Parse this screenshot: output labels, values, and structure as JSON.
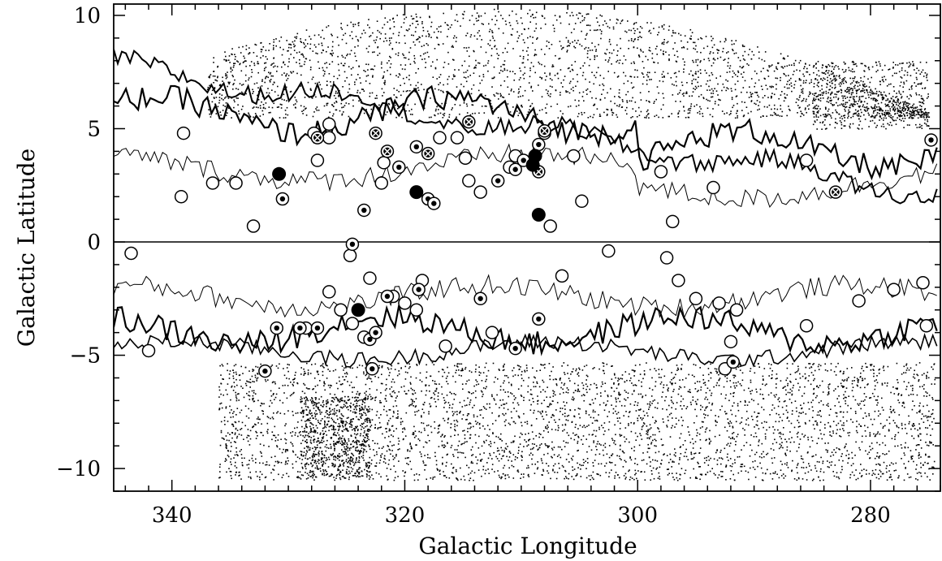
{
  "chart_data": {
    "type": "scatter",
    "title": "",
    "xlabel": "Galactic Longitude",
    "ylabel": "Galactic Latitude",
    "xlim": [
      345,
      274
    ],
    "ylim": [
      -11,
      10.5
    ],
    "x_reversed": true,
    "x_ticks": [
      340,
      320,
      300,
      280
    ],
    "x_tick_labels": [
      "340",
      "320",
      "300",
      "280"
    ],
    "y_ticks": [
      10,
      5,
      0,
      -5,
      -10
    ],
    "y_tick_labels": [
      "10",
      "5",
      "0",
      "−10"
    ],
    "y_tick_labels_full": [
      "10",
      "5",
      "0",
      "−5",
      "−10"
    ],
    "reference_line_y": 0,
    "grid": false,
    "legend": "none",
    "colors": {
      "ink": "#000000",
      "background": "#ffffff"
    },
    "series": [
      {
        "marker": "open-circle",
        "points": [
          [
            339.0,
            4.8
          ],
          [
            339.2,
            2.0
          ],
          [
            336.5,
            2.6
          ],
          [
            334.5,
            2.6
          ],
          [
            333.0,
            0.7
          ],
          [
            327.8,
            4.8
          ],
          [
            327.5,
            3.6
          ],
          [
            326.5,
            5.2
          ],
          [
            326.5,
            4.6
          ],
          [
            322.0,
            2.6
          ],
          [
            321.8,
            3.5
          ],
          [
            317.0,
            4.6
          ],
          [
            315.5,
            4.6
          ],
          [
            314.8,
            3.7
          ],
          [
            314.5,
            2.7
          ],
          [
            313.5,
            2.2
          ],
          [
            311.0,
            3.3
          ],
          [
            310.5,
            3.8
          ],
          [
            307.5,
            0.7
          ],
          [
            305.5,
            3.8
          ],
          [
            304.8,
            1.8
          ],
          [
            298.0,
            3.1
          ],
          [
            297.0,
            0.9
          ],
          [
            293.5,
            2.4
          ],
          [
            285.5,
            3.6
          ],
          [
            343.5,
            -0.5
          ],
          [
            342.0,
            -4.8
          ],
          [
            326.5,
            -2.2
          ],
          [
            325.5,
            -3.0
          ],
          [
            324.7,
            -0.6
          ],
          [
            324.5,
            -3.6
          ],
          [
            323.5,
            -4.2
          ],
          [
            323.0,
            -1.6
          ],
          [
            321.0,
            -2.4
          ],
          [
            320.0,
            -2.7
          ],
          [
            319.0,
            -3.0
          ],
          [
            318.5,
            -1.7
          ],
          [
            316.5,
            -4.6
          ],
          [
            312.5,
            -4.0
          ],
          [
            306.5,
            -1.5
          ],
          [
            302.5,
            -0.4
          ],
          [
            297.5,
            -0.7
          ],
          [
            296.5,
            -1.7
          ],
          [
            295.0,
            -2.5
          ],
          [
            293.0,
            -2.7
          ],
          [
            292.5,
            -5.6
          ],
          [
            292.0,
            -4.4
          ],
          [
            291.5,
            -3.0
          ],
          [
            285.5,
            -3.7
          ],
          [
            281.0,
            -2.6
          ],
          [
            278.0,
            -2.1
          ],
          [
            275.5,
            -1.8
          ],
          [
            275.2,
            -3.7
          ],
          [
            328.5,
            -3.8
          ]
        ]
      },
      {
        "marker": "dotted-circle",
        "points": [
          [
            330.5,
            1.9
          ],
          [
            323.5,
            1.4
          ],
          [
            320.5,
            3.3
          ],
          [
            319.0,
            4.2
          ],
          [
            318.0,
            1.9
          ],
          [
            317.5,
            1.7
          ],
          [
            312.0,
            2.7
          ],
          [
            310.5,
            3.2
          ],
          [
            309.8,
            3.6
          ],
          [
            308.5,
            4.3
          ],
          [
            331.0,
            -3.8
          ],
          [
            329.0,
            -3.8
          ],
          [
            327.5,
            -3.8
          ],
          [
            324.5,
            -0.1
          ],
          [
            323.0,
            -4.3
          ],
          [
            322.8,
            -5.6
          ],
          [
            321.5,
            -2.4
          ],
          [
            318.8,
            -2.1
          ],
          [
            313.5,
            -2.5
          ],
          [
            310.5,
            -4.7
          ],
          [
            308.5,
            -3.4
          ],
          [
            332.0,
            -5.7
          ],
          [
            322.5,
            -4.0
          ],
          [
            291.8,
            -5.3
          ],
          [
            308.0,
            4.8
          ],
          [
            274.8,
            4.5
          ]
        ]
      },
      {
        "marker": "crossed-circle",
        "points": [
          [
            327.5,
            4.6
          ],
          [
            322.5,
            4.8
          ],
          [
            321.5,
            4.0
          ],
          [
            318.0,
            3.9
          ],
          [
            314.5,
            5.3
          ],
          [
            308.5,
            3.1
          ],
          [
            308.0,
            4.9
          ],
          [
            283.0,
            2.2
          ]
        ]
      },
      {
        "marker": "filled-circle",
        "points": [
          [
            330.8,
            3.0
          ],
          [
            319.0,
            2.2
          ],
          [
            309.0,
            3.4
          ],
          [
            308.8,
            3.8
          ],
          [
            308.5,
            1.2
          ],
          [
            324.0,
            -3.0
          ]
        ]
      }
    ]
  }
}
